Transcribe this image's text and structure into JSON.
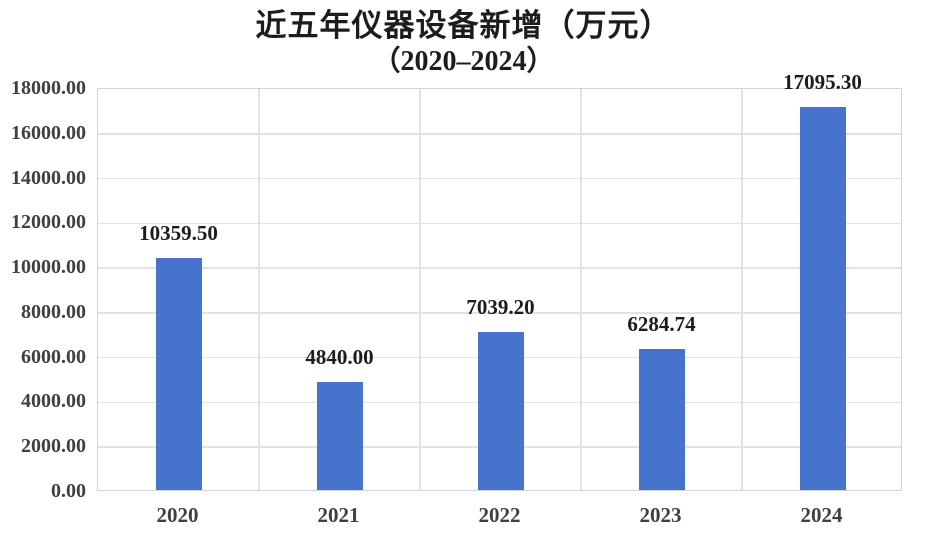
{
  "chart_data": {
    "type": "bar",
    "title": "近五年仪器设备新增（万元）",
    "subtitle": "（2020–2024）",
    "categories": [
      "2020",
      "2021",
      "2022",
      "2023",
      "2024"
    ],
    "values": [
      10359.5,
      4840.0,
      7039.2,
      6284.74,
      17095.3
    ],
    "data_labels": [
      "10359.50",
      "4840.00",
      "7039.20",
      "6284.74",
      "17095.30"
    ],
    "xlabel": "",
    "ylabel": "",
    "ylim": [
      0,
      18000
    ],
    "ytick_step": 2000,
    "ytick_labels": [
      "0.00",
      "2000.00",
      "4000.00",
      "6000.00",
      "8000.00",
      "10000.00",
      "12000.00",
      "14000.00",
      "16000.00",
      "18000.00"
    ],
    "grid": "both",
    "legend_position": "none",
    "bar_color": "#4673CB"
  },
  "colors": {
    "bar": "#4673CB",
    "gridline": "#E2E2E2",
    "plot_border": "#D4D4D4",
    "axis_text": "#3E4043",
    "title_text": "#1C1C1C",
    "background": "#FFFFFF"
  }
}
